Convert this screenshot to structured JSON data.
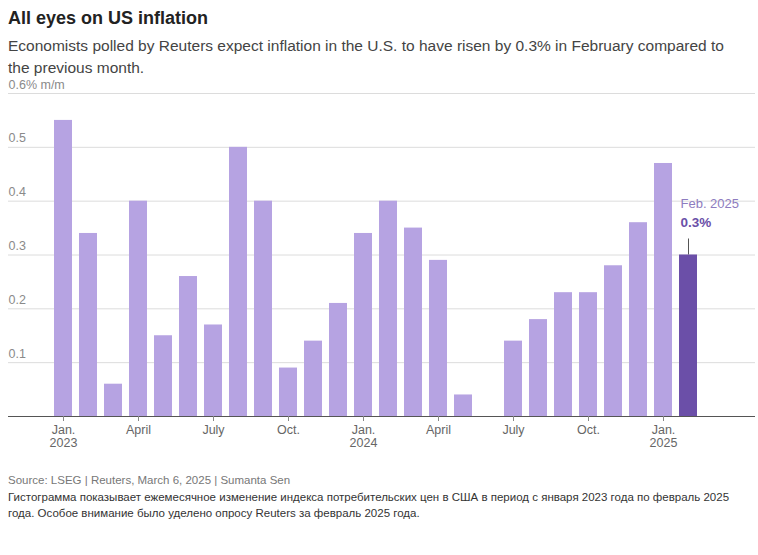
{
  "chart_data": {
    "type": "bar",
    "title": "All eyes on US inflation",
    "subtitle": "Economists polled by Reuters expect inflation in the U.S. to have risen by 0.3% in February compared to the previous month.",
    "source": "Source: LSEG | Reuters, March 6, 2025 | Sumanta Sen",
    "caption": "Гистограмма показывает ежемесячное изменение индекса потребительских цен в США в период с января 2023 года по февраль 2025 года. Особое внимание было уделено опросу Reuters за февраль 2025 года.",
    "categories": [
      "Jan.\n2023",
      null,
      null,
      "April",
      null,
      null,
      "July",
      null,
      null,
      "Oct.",
      null,
      null,
      "Jan.\n2024",
      null,
      null,
      "April",
      null,
      null,
      "July",
      null,
      null,
      "Oct.",
      null,
      null,
      "Jan.\n2025",
      null
    ],
    "values": [
      0.55,
      0.34,
      0.06,
      0.4,
      0.15,
      0.26,
      0.17,
      0.5,
      0.4,
      0.09,
      0.14,
      0.21,
      0.34,
      0.4,
      0.35,
      0.29,
      0.04,
      0,
      0.14,
      0.18,
      0.23,
      0.23,
      0.28,
      0.36,
      0.47,
      0.3
    ],
    "colors": [
      "#b6a3e2",
      "#b6a3e2",
      "#b6a3e2",
      "#b6a3e2",
      "#b6a3e2",
      "#b6a3e2",
      "#b6a3e2",
      "#b6a3e2",
      "#b6a3e2",
      "#b6a3e2",
      "#b6a3e2",
      "#b6a3e2",
      "#b6a3e2",
      "#b6a3e2",
      "#b6a3e2",
      "#b6a3e2",
      "#b6a3e2",
      "#b6a3e2",
      "#b6a3e2",
      "#b6a3e2",
      "#b6a3e2",
      "#b6a3e2",
      "#b6a3e2",
      "#b6a3e2",
      "#b6a3e2",
      "#6b4fa8"
    ],
    "annotation": {
      "text": "Feb. 2025",
      "value_label": "0.3%"
    },
    "ylim": [
      0,
      0.6
    ],
    "yticks": [
      0.1,
      0.2,
      0.3,
      0.4,
      0.5,
      {
        "value": 0.6,
        "label": "0.6% m/m"
      }
    ],
    "grid": true
  }
}
